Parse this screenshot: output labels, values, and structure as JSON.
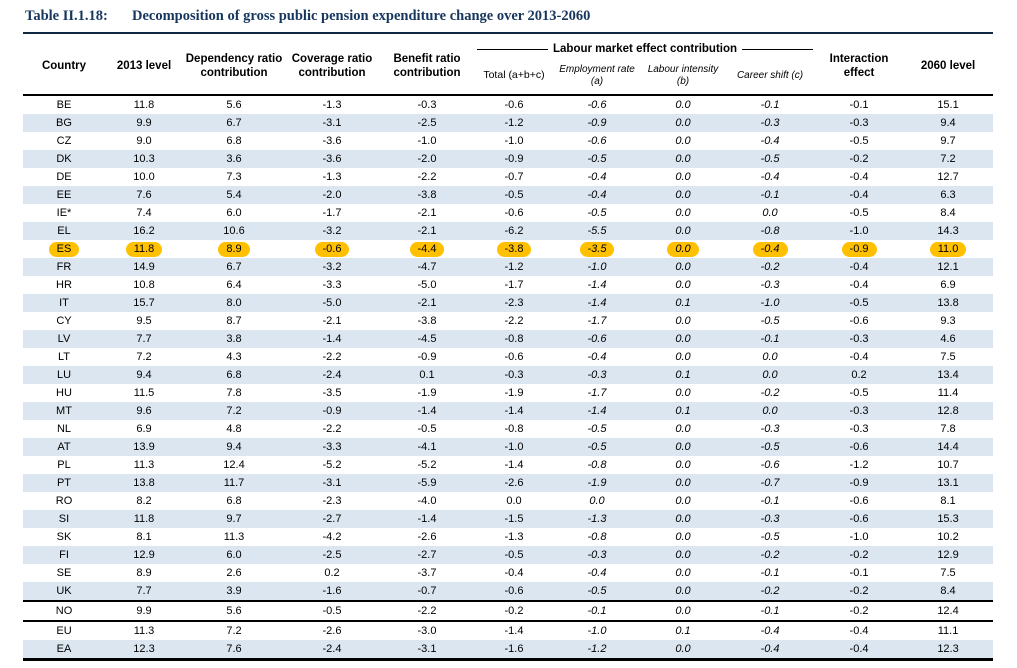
{
  "title": {
    "label": "Table II.1.18:",
    "text": "Decomposition of gross public pension expenditure change over 2013-2060"
  },
  "colors": {
    "title_navy": "#17365D",
    "shaded_row": "#DCE6F1",
    "highlight": "#FFC000"
  },
  "table": {
    "headers": {
      "country": "Country",
      "level_2013": "2013 level",
      "dependency": "Dependency ratio contribution",
      "coverage": "Coverage ratio contribution",
      "benefit": "Benefit ratio contribution",
      "labour_group": "Labour market effect contribution",
      "labour_total": "Total (a+b+c)",
      "employment_rate": "Employment rate (a)",
      "labour_intensity": "Labour intensity (b)",
      "career_shift": "Career shift (c)",
      "interaction": "Interaction effect",
      "level_2060": "2060 level"
    },
    "column_keys": [
      "level-2013",
      "dependency-ratio",
      "coverage-ratio",
      "benefit-ratio",
      "labour-total",
      "employment-rate",
      "labour-intensity",
      "career-shift",
      "interaction-effect",
      "level-2060"
    ],
    "rows": [
      {
        "country": "BE",
        "values": [
          "11.8",
          "5.6",
          "-1.3",
          "-0.3",
          "-0.6",
          "-0.6",
          "0.0",
          "-0.1",
          "-0.1",
          "15.1"
        ],
        "shaded": false,
        "highlight": false
      },
      {
        "country": "BG",
        "values": [
          "9.9",
          "6.7",
          "-3.1",
          "-2.5",
          "-1.2",
          "-0.9",
          "0.0",
          "-0.3",
          "-0.3",
          "9.4"
        ],
        "shaded": true,
        "highlight": false
      },
      {
        "country": "CZ",
        "values": [
          "9.0",
          "6.8",
          "-3.6",
          "-1.0",
          "-1.0",
          "-0.6",
          "0.0",
          "-0.4",
          "-0.5",
          "9.7"
        ],
        "shaded": false,
        "highlight": false
      },
      {
        "country": "DK",
        "values": [
          "10.3",
          "3.6",
          "-3.6",
          "-2.0",
          "-0.9",
          "-0.5",
          "0.0",
          "-0.5",
          "-0.2",
          "7.2"
        ],
        "shaded": true,
        "highlight": false
      },
      {
        "country": "DE",
        "values": [
          "10.0",
          "7.3",
          "-1.3",
          "-2.2",
          "-0.7",
          "-0.4",
          "0.0",
          "-0.4",
          "-0.4",
          "12.7"
        ],
        "shaded": false,
        "highlight": false
      },
      {
        "country": "EE",
        "values": [
          "7.6",
          "5.4",
          "-2.0",
          "-3.8",
          "-0.5",
          "-0.4",
          "0.0",
          "-0.1",
          "-0.4",
          "6.3"
        ],
        "shaded": true,
        "highlight": false
      },
      {
        "country": "IE*",
        "values": [
          "7.4",
          "6.0",
          "-1.7",
          "-2.1",
          "-0.6",
          "-0.5",
          "0.0",
          "0.0",
          "-0.5",
          "8.4"
        ],
        "shaded": false,
        "highlight": false
      },
      {
        "country": "EL",
        "values": [
          "16.2",
          "10.6",
          "-3.2",
          "-2.1",
          "-6.2",
          "-5.5",
          "0.0",
          "-0.8",
          "-1.0",
          "14.3"
        ],
        "shaded": true,
        "highlight": false
      },
      {
        "country": "ES",
        "values": [
          "11.8",
          "8.9",
          "-0.6",
          "-4.4",
          "-3.8",
          "-3.5",
          "0.0",
          "-0.4",
          "-0.9",
          "11.0"
        ],
        "shaded": false,
        "highlight": true
      },
      {
        "country": "FR",
        "values": [
          "14.9",
          "6.7",
          "-3.2",
          "-4.7",
          "-1.2",
          "-1.0",
          "0.0",
          "-0.2",
          "-0.4",
          "12.1"
        ],
        "shaded": true,
        "highlight": false
      },
      {
        "country": "HR",
        "values": [
          "10.8",
          "6.4",
          "-3.3",
          "-5.0",
          "-1.7",
          "-1.4",
          "0.0",
          "-0.3",
          "-0.4",
          "6.9"
        ],
        "shaded": false,
        "highlight": false
      },
      {
        "country": "IT",
        "values": [
          "15.7",
          "8.0",
          "-5.0",
          "-2.1",
          "-2.3",
          "-1.4",
          "0.1",
          "-1.0",
          "-0.5",
          "13.8"
        ],
        "shaded": true,
        "highlight": false
      },
      {
        "country": "CY",
        "values": [
          "9.5",
          "8.7",
          "-2.1",
          "-3.8",
          "-2.2",
          "-1.7",
          "0.0",
          "-0.5",
          "-0.6",
          "9.3"
        ],
        "shaded": false,
        "highlight": false
      },
      {
        "country": "LV",
        "values": [
          "7.7",
          "3.8",
          "-1.4",
          "-4.5",
          "-0.8",
          "-0.6",
          "0.0",
          "-0.1",
          "-0.3",
          "4.6"
        ],
        "shaded": true,
        "highlight": false
      },
      {
        "country": "LT",
        "values": [
          "7.2",
          "4.3",
          "-2.2",
          "-0.9",
          "-0.6",
          "-0.4",
          "0.0",
          "0.0",
          "-0.4",
          "7.5"
        ],
        "shaded": false,
        "highlight": false
      },
      {
        "country": "LU",
        "values": [
          "9.4",
          "6.8",
          "-2.4",
          "0.1",
          "-0.3",
          "-0.3",
          "0.1",
          "0.0",
          "0.2",
          "13.4"
        ],
        "shaded": true,
        "highlight": false
      },
      {
        "country": "HU",
        "values": [
          "11.5",
          "7.8",
          "-3.5",
          "-1.9",
          "-1.9",
          "-1.7",
          "0.0",
          "-0.2",
          "-0.5",
          "11.4"
        ],
        "shaded": false,
        "highlight": false
      },
      {
        "country": "MT",
        "values": [
          "9.6",
          "7.2",
          "-0.9",
          "-1.4",
          "-1.4",
          "-1.4",
          "0.1",
          "0.0",
          "-0.3",
          "12.8"
        ],
        "shaded": true,
        "highlight": false
      },
      {
        "country": "NL",
        "values": [
          "6.9",
          "4.8",
          "-2.2",
          "-0.5",
          "-0.8",
          "-0.5",
          "0.0",
          "-0.3",
          "-0.3",
          "7.8"
        ],
        "shaded": false,
        "highlight": false
      },
      {
        "country": "AT",
        "values": [
          "13.9",
          "9.4",
          "-3.3",
          "-4.1",
          "-1.0",
          "-0.5",
          "0.0",
          "-0.5",
          "-0.6",
          "14.4"
        ],
        "shaded": true,
        "highlight": false
      },
      {
        "country": "PL",
        "values": [
          "11.3",
          "12.4",
          "-5.2",
          "-5.2",
          "-1.4",
          "-0.8",
          "0.0",
          "-0.6",
          "-1.2",
          "10.7"
        ],
        "shaded": false,
        "highlight": false
      },
      {
        "country": "PT",
        "values": [
          "13.8",
          "11.7",
          "-3.1",
          "-5.9",
          "-2.6",
          "-1.9",
          "0.0",
          "-0.7",
          "-0.9",
          "13.1"
        ],
        "shaded": true,
        "highlight": false
      },
      {
        "country": "RO",
        "values": [
          "8.2",
          "6.8",
          "-2.3",
          "-4.0",
          "0.0",
          "0.0",
          "0.0",
          "-0.1",
          "-0.6",
          "8.1"
        ],
        "shaded": false,
        "highlight": false
      },
      {
        "country": "SI",
        "values": [
          "11.8",
          "9.7",
          "-2.7",
          "-1.4",
          "-1.5",
          "-1.3",
          "0.0",
          "-0.3",
          "-0.6",
          "15.3"
        ],
        "shaded": true,
        "highlight": false
      },
      {
        "country": "SK",
        "values": [
          "8.1",
          "11.3",
          "-4.2",
          "-2.6",
          "-1.3",
          "-0.8",
          "0.0",
          "-0.5",
          "-1.0",
          "10.2"
        ],
        "shaded": false,
        "highlight": false
      },
      {
        "country": "FI",
        "values": [
          "12.9",
          "6.0",
          "-2.5",
          "-2.7",
          "-0.5",
          "-0.3",
          "0.0",
          "-0.2",
          "-0.2",
          "12.9"
        ],
        "shaded": true,
        "highlight": false
      },
      {
        "country": "SE",
        "values": [
          "8.9",
          "2.6",
          "0.2",
          "-3.7",
          "-0.4",
          "-0.4",
          "0.0",
          "-0.1",
          "-0.1",
          "7.5"
        ],
        "shaded": false,
        "highlight": false
      },
      {
        "country": "UK",
        "values": [
          "7.7",
          "3.9",
          "-1.6",
          "-0.7",
          "-0.6",
          "-0.5",
          "0.0",
          "-0.2",
          "-0.2",
          "8.4"
        ],
        "shaded": true,
        "highlight": false
      },
      {
        "country": "NO",
        "values": [
          "9.9",
          "5.6",
          "-0.5",
          "-2.2",
          "-0.2",
          "-0.1",
          "0.0",
          "-0.1",
          "-0.2",
          "12.4"
        ],
        "shaded": false,
        "highlight": false,
        "sep_above": true
      },
      {
        "country": "EU",
        "values": [
          "11.3",
          "7.2",
          "-2.6",
          "-3.0",
          "-1.4",
          "-1.0",
          "0.1",
          "-0.4",
          "-0.4",
          "11.1"
        ],
        "shaded": false,
        "highlight": false,
        "sep_above": true
      },
      {
        "country": "EA",
        "values": [
          "12.3",
          "7.6",
          "-2.4",
          "-3.1",
          "-1.6",
          "-1.2",
          "0.0",
          "-0.4",
          "-0.4",
          "12.3"
        ],
        "shaded": true,
        "highlight": false
      }
    ]
  }
}
